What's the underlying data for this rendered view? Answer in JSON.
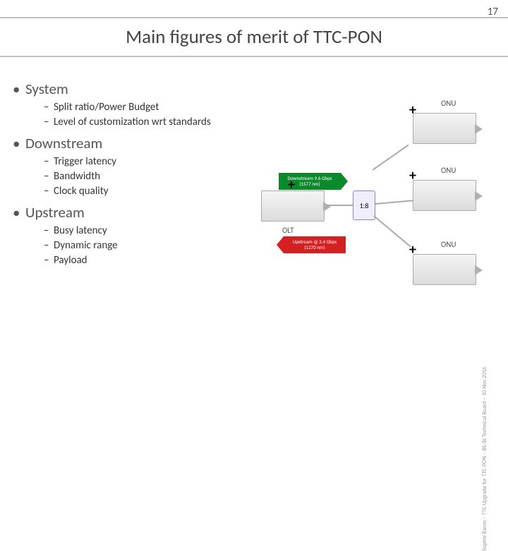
{
  "page_number": "17",
  "title": "Main figures of merit of TTC-PON",
  "side_credit": "Sophie Baron – TTC Upgrade for TTC-PON – BE/BI Technical Board – 10 Nov 2016",
  "bullets": [
    {
      "label": "System",
      "subs": [
        "Split ratio/Power Budget",
        "Level of customization wrt standards"
      ]
    },
    {
      "label": "Downstream",
      "subs": [
        "Trigger latency",
        "Bandwidth",
        "Clock quality"
      ]
    },
    {
      "label": "Upstream",
      "subs": [
        "Busy latency",
        "Dynamic range",
        "Payload"
      ]
    }
  ],
  "diagram": {
    "olt_label": "OLT",
    "onu_label": "ONU",
    "splitter_label": "1:8",
    "downstream_arrow": "Downstream 9.6 Gbps (1577 nm)",
    "upstream_arrow": "Upstream @ 2.4 Gbps (1270 nm)",
    "colors": {
      "downstream": "#0a8a2a",
      "upstream": "#d42020"
    }
  }
}
